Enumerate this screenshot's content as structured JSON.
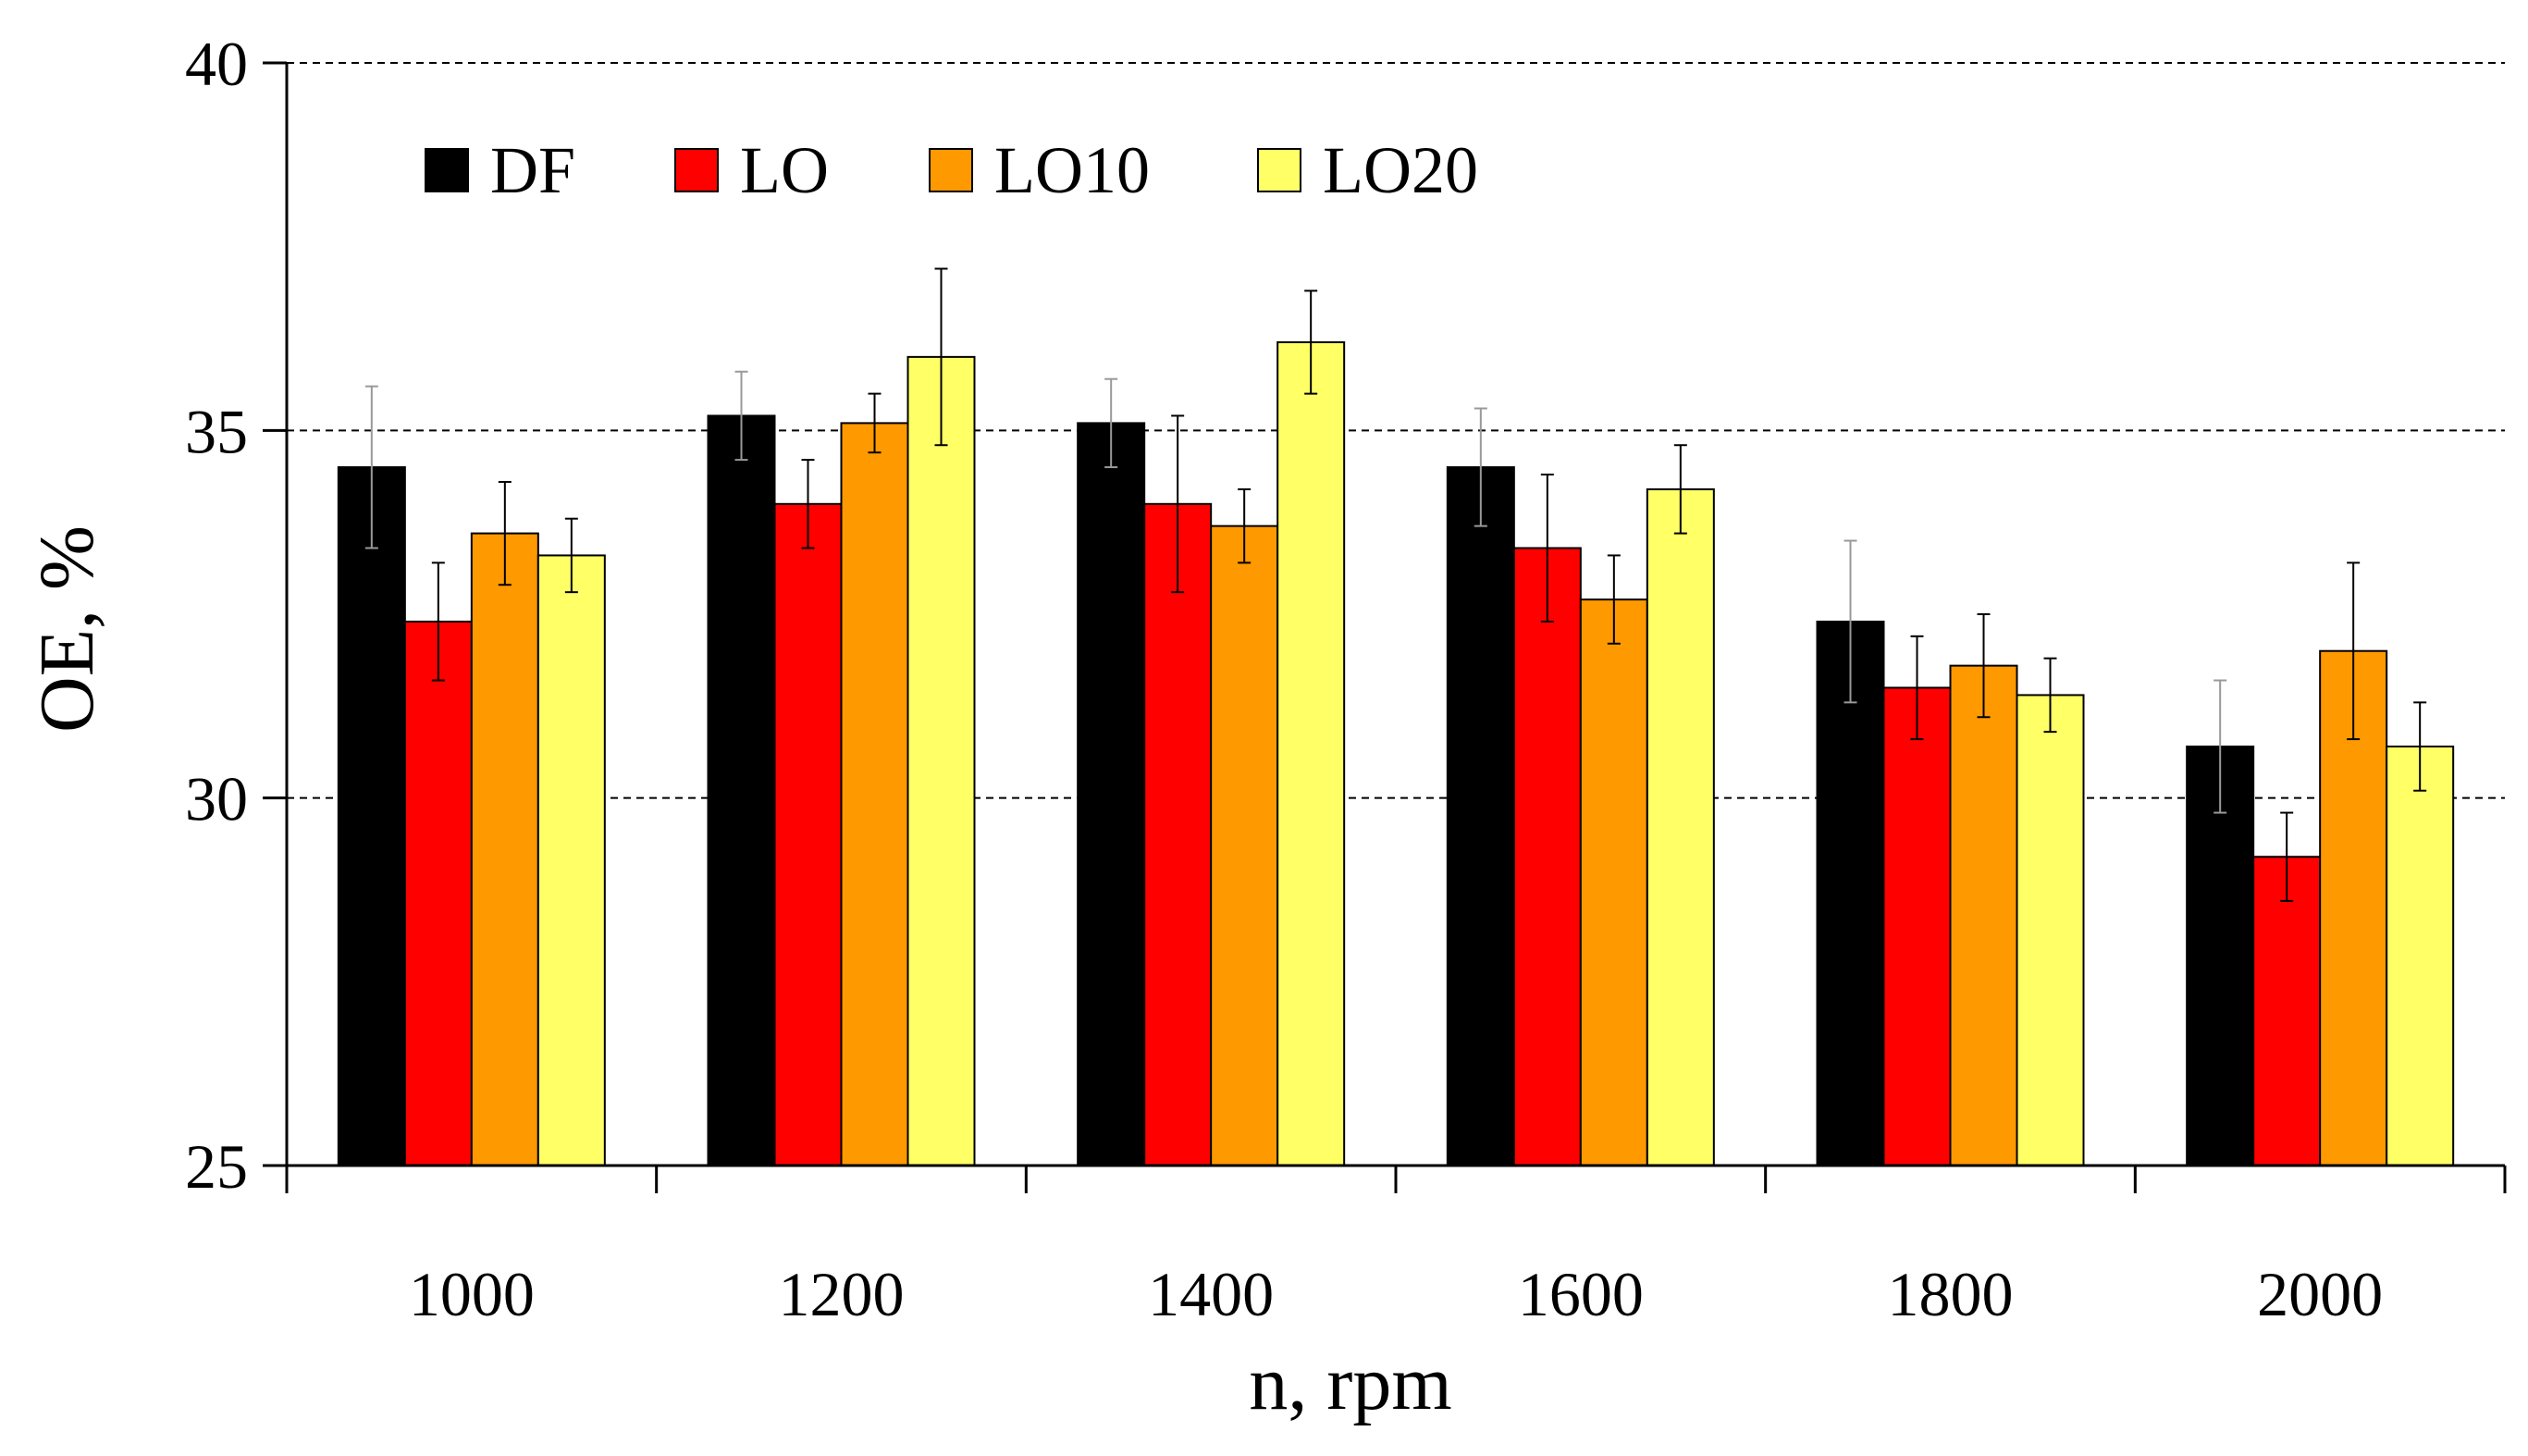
{
  "chart_data": {
    "type": "bar",
    "title": "",
    "xlabel": "n, rpm",
    "ylabel": "OE, %",
    "ylim": [
      25,
      40
    ],
    "yticks": [
      25,
      30,
      35,
      40
    ],
    "grid": "horizontal dashed at 30, 35, 40",
    "legend_position": "top-left",
    "categories": [
      "1000",
      "1200",
      "1400",
      "1600",
      "1800",
      "2000"
    ],
    "series": [
      {
        "name": "DF",
        "color": "#000000",
        "values": [
          34.5,
          35.2,
          35.1,
          34.5,
          32.4,
          30.7
        ],
        "errors": [
          1.1,
          0.6,
          0.6,
          0.8,
          1.1,
          0.9
        ]
      },
      {
        "name": "LO",
        "color": "#ff0000",
        "values": [
          32.4,
          34.0,
          34.0,
          33.4,
          31.5,
          29.2
        ],
        "errors": [
          0.8,
          0.6,
          1.2,
          1.0,
          0.7,
          0.6
        ]
      },
      {
        "name": "LO10",
        "color": "#ff9900",
        "values": [
          33.6,
          35.1,
          33.7,
          32.7,
          31.8,
          32.0
        ],
        "errors": [
          0.7,
          0.4,
          0.5,
          0.6,
          0.7,
          1.2
        ]
      },
      {
        "name": "LO20",
        "color": "#ffff66",
        "values": [
          33.3,
          36.0,
          36.2,
          34.2,
          31.4,
          30.7
        ],
        "errors": [
          0.5,
          1.2,
          0.7,
          0.6,
          0.5,
          0.6
        ]
      }
    ]
  }
}
